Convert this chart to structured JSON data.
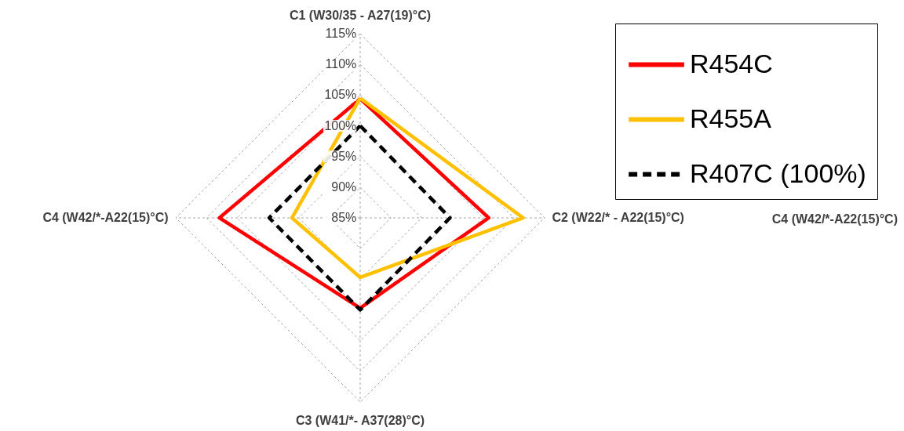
{
  "chart_data": {
    "type": "radar",
    "categories": [
      "C1 (W30/35 - A27(19)°C)",
      "C2 (W22/* - A22(15)°C)",
      "C3 (W41/*- A37(28)°C)",
      "C4 (W42/*-A22(15)°C)"
    ],
    "ylim": [
      85,
      115
    ],
    "yticks": [
      {
        "value": 85,
        "label": "85%"
      },
      {
        "value": 90,
        "label": "90%"
      },
      {
        "value": 95,
        "label": "95%"
      },
      {
        "value": 100,
        "label": "100%"
      },
      {
        "value": 105,
        "label": "105%"
      },
      {
        "value": 110,
        "label": "110%"
      },
      {
        "value": 115,
        "label": "115%"
      }
    ],
    "series": [
      {
        "name": "R454C",
        "color": "#ff0000",
        "line_style": "solid",
        "values": [
          104.4,
          105.9,
          99.7,
          107.9
        ]
      },
      {
        "name": "R455A",
        "color": "#ffc000",
        "line_style": "solid",
        "values": [
          104.5,
          111.5,
          94.7,
          96.1
        ]
      },
      {
        "name": "R407C (100%)",
        "color": "#000000",
        "line_style": "dashed",
        "values": [
          100,
          99.6,
          100,
          99.8
        ]
      }
    ],
    "grid": true,
    "legend": "top right",
    "annotations": [
      "C4 (W42/*-A22(15)°C)"
    ]
  }
}
